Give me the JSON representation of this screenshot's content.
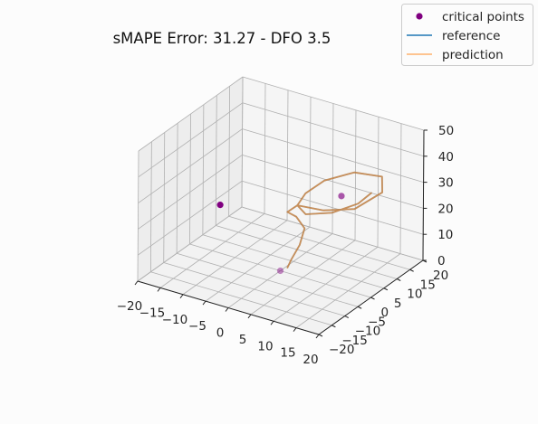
{
  "chart_data": {
    "type": "line",
    "projection": "3d",
    "title": "sMAPE Error: 31.27 - DFO 3.5",
    "xlim": [
      -20,
      20
    ],
    "ylim": [
      -20,
      20
    ],
    "zlim": [
      0,
      50
    ],
    "x_ticks": [
      -20,
      -15,
      -10,
      -5,
      0,
      5,
      10,
      15,
      20
    ],
    "y_ticks": [
      -20,
      -15,
      -10,
      -5,
      0,
      5,
      10,
      15,
      20
    ],
    "z_ticks": [
      0,
      10,
      20,
      30,
      40,
      50
    ],
    "x_tick_labels": [
      "−20",
      "−15",
      "−10",
      "−5",
      "0",
      "5",
      "10",
      "15",
      "20"
    ],
    "y_tick_labels": [
      "−20",
      "−15",
      "−10",
      "−5",
      "0",
      "5",
      "10",
      "15",
      "20"
    ],
    "z_tick_labels": [
      "0",
      "10",
      "20",
      "30",
      "40",
      "50"
    ],
    "grid": true,
    "legend_position": "top-right",
    "legend": [
      {
        "label": "critical points",
        "kind": "marker",
        "color": "#800080"
      },
      {
        "label": "reference",
        "kind": "line",
        "color": "#1f77b4"
      },
      {
        "label": "prediction",
        "kind": "line",
        "color": "#ff7f0e"
      }
    ],
    "critical_points": [
      {
        "x": 0.0,
        "y": 0.0,
        "z": 0.0
      },
      {
        "x": 8.5,
        "y": 8.5,
        "z": 27.0
      },
      {
        "x": -8.5,
        "y": -8.5,
        "z": 27.0
      }
    ],
    "series": [
      {
        "name": "reference",
        "color": "#1f77b4",
        "points": [
          [
            1.0,
            1.0,
            1.0
          ],
          [
            1.5,
            1.6,
            4.0
          ],
          [
            2.5,
            3.0,
            9.0
          ],
          [
            3.0,
            4.0,
            15.0
          ],
          [
            2.0,
            2.5,
            20.0
          ],
          [
            1.0,
            0.8,
            22.5
          ],
          [
            2.5,
            2.0,
            25.0
          ],
          [
            6.0,
            6.0,
            22.0
          ],
          [
            10.0,
            11.0,
            21.0
          ],
          [
            13.5,
            15.5,
            26.0
          ],
          [
            14.0,
            14.5,
            33.0
          ],
          [
            11.0,
            9.0,
            37.0
          ],
          [
            7.0,
            4.5,
            35.0
          ],
          [
            4.0,
            2.5,
            30.0
          ],
          [
            2.5,
            2.0,
            25.0
          ],
          [
            3.5,
            3.5,
            21.0
          ],
          [
            7.0,
            7.5,
            20.5
          ],
          [
            10.5,
            11.5,
            23.0
          ],
          [
            12.5,
            13.0,
            27.0
          ]
        ]
      },
      {
        "name": "prediction",
        "color": "#ff7f0e",
        "points": [
          [
            1.0,
            1.0,
            1.0
          ],
          [
            1.5,
            1.6,
            4.0
          ],
          [
            2.5,
            3.0,
            9.0
          ],
          [
            3.0,
            4.0,
            15.0
          ],
          [
            2.0,
            2.5,
            20.0
          ],
          [
            1.0,
            0.8,
            22.5
          ],
          [
            2.5,
            2.0,
            25.0
          ],
          [
            6.0,
            6.0,
            22.0
          ],
          [
            10.0,
            11.0,
            21.0
          ],
          [
            13.5,
            15.5,
            26.0
          ],
          [
            14.0,
            14.5,
            33.0
          ],
          [
            11.0,
            9.0,
            37.0
          ],
          [
            7.0,
            4.5,
            35.0
          ],
          [
            4.0,
            2.5,
            30.0
          ],
          [
            2.5,
            2.0,
            25.0
          ],
          [
            3.5,
            3.5,
            21.0
          ],
          [
            7.0,
            7.5,
            20.5
          ],
          [
            10.5,
            11.5,
            23.0
          ],
          [
            12.5,
            13.0,
            27.0
          ]
        ]
      }
    ]
  }
}
